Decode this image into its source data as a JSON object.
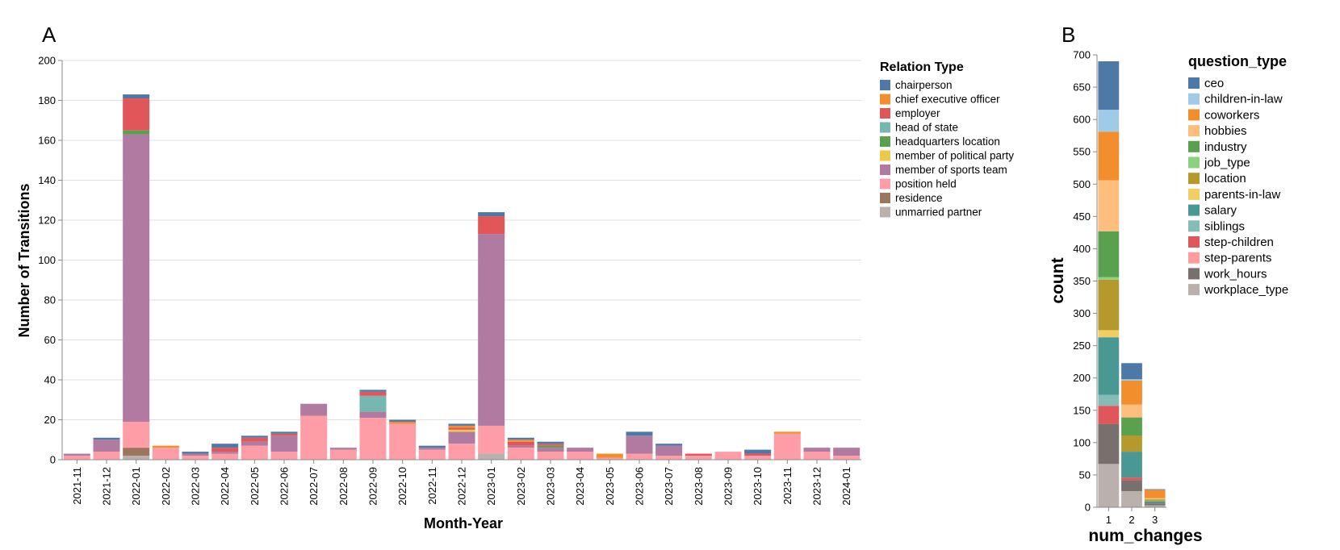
{
  "panels": {
    "a_label": "A",
    "b_label": "B"
  },
  "colors": {
    "chairperson": "#4e79a7",
    "chief executive officer": "#f28e2b",
    "employer": "#e15759",
    "head of state": "#76b7b2",
    "headquarters location": "#59a14f",
    "member of political party": "#edc948",
    "member of sports team": "#b07aa1",
    "position held": "#ff9da7",
    "residence": "#9c755f",
    "unmarried partner": "#bab0ac",
    "ceo": "#4e79a7",
    "children-in-law": "#a0cbe8",
    "coworkers": "#f28e2b",
    "hobbies": "#ffbe7d",
    "industry": "#59a14f",
    "job_type": "#8cd17d",
    "location": "#b6992d",
    "parents-in-law": "#f1ce63",
    "salary": "#499894",
    "siblings": "#86bcb6",
    "step-children": "#e15759",
    "step-parents": "#ff9d9a",
    "work_hours": "#79706e",
    "workplace_type": "#bab0ac"
  },
  "chart_data": [
    {
      "type": "bar",
      "stacked": true,
      "panel": "A",
      "title": "",
      "xlabel": "Month-Year",
      "ylabel": "Number of Transitions",
      "ylim": [
        0,
        200
      ],
      "yticks": [
        0,
        20,
        40,
        60,
        80,
        100,
        120,
        140,
        160,
        180,
        200
      ],
      "grid": true,
      "legend_title": "Relation Type",
      "legend_position": "right",
      "categories": [
        "2021-11",
        "2021-12",
        "2022-01",
        "2022-02",
        "2022-03",
        "2022-04",
        "2022-05",
        "2022-06",
        "2022-07",
        "2022-08",
        "2022-09",
        "2022-10",
        "2022-11",
        "2022-12",
        "2023-01",
        "2023-02",
        "2023-03",
        "2023-04",
        "2023-05",
        "2023-06",
        "2023-07",
        "2023-08",
        "2023-09",
        "2023-10",
        "2023-11",
        "2023-12",
        "2024-01"
      ],
      "series": [
        {
          "name": "unmarried partner",
          "values": [
            0,
            0,
            2,
            0,
            0,
            0,
            0,
            0,
            0,
            0,
            0,
            0,
            0,
            0,
            3,
            0,
            0,
            0,
            0,
            0,
            0,
            0,
            0,
            0,
            0,
            0,
            0
          ]
        },
        {
          "name": "residence",
          "values": [
            0,
            0,
            4,
            0,
            0,
            0,
            0,
            0,
            0,
            0,
            0,
            0,
            0,
            0,
            0,
            0,
            0,
            0,
            0,
            0,
            0,
            0,
            0,
            0,
            0,
            0,
            0
          ]
        },
        {
          "name": "position held",
          "values": [
            2,
            4,
            13,
            6,
            2,
            3,
            7,
            4,
            22,
            5,
            21,
            18,
            5,
            8,
            14,
            6,
            4,
            4,
            1,
            3,
            2,
            2,
            4,
            2,
            13,
            4,
            2
          ]
        },
        {
          "name": "member of sports team",
          "values": [
            1,
            6,
            144,
            0,
            1,
            1,
            2,
            8,
            6,
            1,
            3,
            0,
            1,
            6,
            96,
            1,
            2,
            2,
            0,
            9,
            5,
            0,
            0,
            0,
            0,
            2,
            4
          ]
        },
        {
          "name": "member of political party",
          "values": [
            0,
            0,
            0,
            0,
            0,
            0,
            0,
            0,
            0,
            0,
            0,
            0,
            0,
            1,
            0,
            0,
            0,
            0,
            0,
            0,
            0,
            0,
            0,
            0,
            0,
            0,
            0
          ]
        },
        {
          "name": "headquarters location",
          "values": [
            0,
            0,
            2,
            0,
            0,
            0,
            0,
            0,
            0,
            0,
            0,
            0,
            0,
            0,
            0,
            0,
            1,
            0,
            0,
            0,
            0,
            0,
            0,
            0,
            0,
            0,
            0
          ]
        },
        {
          "name": "head of state",
          "values": [
            0,
            0,
            0,
            0,
            0,
            0,
            0,
            0,
            0,
            0,
            8,
            0,
            0,
            0,
            0,
            0,
            0,
            0,
            0,
            0,
            0,
            0,
            0,
            0,
            0,
            0,
            0
          ]
        },
        {
          "name": "employer",
          "values": [
            0,
            0,
            16,
            0,
            0,
            2,
            2,
            1,
            0,
            0,
            2,
            0,
            0,
            1,
            9,
            2,
            1,
            0,
            0,
            0,
            0,
            1,
            0,
            1,
            0,
            0,
            0
          ]
        },
        {
          "name": "chief executive officer",
          "values": [
            0,
            0,
            0,
            1,
            0,
            0,
            0,
            0,
            0,
            0,
            0,
            1,
            0,
            1,
            0,
            1,
            0,
            0,
            2,
            0,
            0,
            0,
            0,
            0,
            1,
            0,
            0
          ]
        },
        {
          "name": "chairperson",
          "values": [
            0,
            1,
            2,
            0,
            1,
            2,
            1,
            1,
            0,
            0,
            1,
            1,
            1,
            1,
            2,
            1,
            1,
            0,
            0,
            2,
            1,
            0,
            0,
            2,
            0,
            0,
            0
          ]
        }
      ],
      "legend_order": [
        "chairperson",
        "chief executive officer",
        "employer",
        "head of state",
        "headquarters location",
        "member of political party",
        "member of sports team",
        "position held",
        "residence",
        "unmarried partner"
      ]
    },
    {
      "type": "bar",
      "stacked": true,
      "panel": "B",
      "title": "",
      "xlabel": "num_changes",
      "ylabel": "count",
      "ylim": [
        0,
        700
      ],
      "yticks": [
        0,
        50,
        100,
        150,
        200,
        250,
        300,
        350,
        400,
        450,
        500,
        550,
        600,
        650,
        700
      ],
      "grid": false,
      "legend_title": "question_type",
      "legend_position": "right",
      "categories": [
        "1",
        "2",
        "3"
      ],
      "series": [
        {
          "name": "workplace_type",
          "values": [
            67,
            25,
            3
          ]
        },
        {
          "name": "work_hours",
          "values": [
            62,
            17,
            3
          ]
        },
        {
          "name": "step-parents",
          "values": [
            0,
            0,
            0
          ]
        },
        {
          "name": "step-children",
          "values": [
            28,
            4,
            0
          ]
        },
        {
          "name": "siblings",
          "values": [
            17,
            0,
            0
          ]
        },
        {
          "name": "salary",
          "values": [
            89,
            40,
            3
          ]
        },
        {
          "name": "parents-in-law",
          "values": [
            11,
            0,
            0
          ]
        },
        {
          "name": "location",
          "values": [
            78,
            25,
            2
          ]
        },
        {
          "name": "job_type",
          "values": [
            4,
            0,
            0
          ]
        },
        {
          "name": "industry",
          "values": [
            71,
            28,
            1
          ]
        },
        {
          "name": "hobbies",
          "values": [
            79,
            20,
            2
          ]
        },
        {
          "name": "coworkers",
          "values": [
            75,
            37,
            13
          ]
        },
        {
          "name": "children-in-law",
          "values": [
            34,
            2,
            0
          ]
        },
        {
          "name": "ceo",
          "values": [
            75,
            25,
            1
          ]
        }
      ],
      "legend_order": [
        "ceo",
        "children-in-law",
        "coworkers",
        "hobbies",
        "industry",
        "job_type",
        "location",
        "parents-in-law",
        "salary",
        "siblings",
        "step-children",
        "step-parents",
        "work_hours",
        "workplace_type"
      ]
    }
  ]
}
